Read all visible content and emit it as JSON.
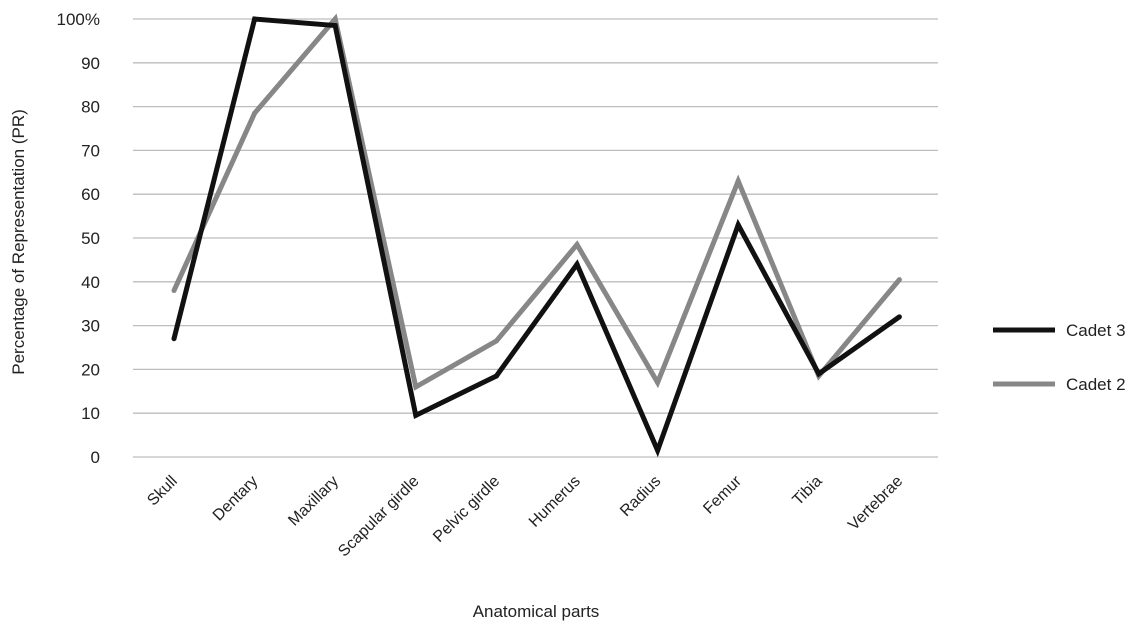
{
  "chart_data": {
    "type": "line",
    "title": "",
    "xlabel": "Anatomical parts",
    "ylabel": "Percentage of Representation (PR)",
    "ylim": [
      0,
      100
    ],
    "yticks": [
      "0",
      "10",
      "20",
      "30",
      "40",
      "50",
      "60",
      "70",
      "80",
      "90",
      "100%"
    ],
    "grid": true,
    "legend_position": "right",
    "categories": [
      "Skull",
      "Dentary",
      "Maxillary",
      "Scapular girdle",
      "Pelvic girdle",
      "Humerus",
      "Radius",
      "Femur",
      "Tibia",
      "Vertebrae"
    ],
    "series": [
      {
        "name": "Cadet 3",
        "color": "#111111",
        "values": [
          27,
          100,
          98.5,
          9.5,
          18.5,
          44,
          1.5,
          53,
          19,
          32
        ]
      },
      {
        "name": "Cadet 2",
        "color": "#878787",
        "values": [
          38,
          78.5,
          100,
          16,
          26.5,
          48.5,
          17,
          63,
          18.5,
          40.5
        ]
      }
    ]
  }
}
